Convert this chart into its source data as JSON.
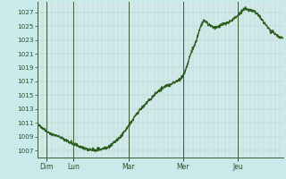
{
  "background_color": "#c8eaea",
  "plot_bg_color": "#d4eded",
  "grid_color": "#b8d0d0",
  "line_color": "#2d6020",
  "line_width": 0.9,
  "yticks": [
    1007,
    1009,
    1011,
    1013,
    1015,
    1017,
    1019,
    1021,
    1023,
    1025,
    1027
  ],
  "ylim": [
    1006.0,
    1028.5
  ],
  "day_labels": [
    "Dim",
    "Lun",
    "Mar",
    "Mer",
    "Jeu"
  ],
  "day_positions": [
    8,
    32,
    80,
    128,
    176
  ],
  "total_hours": 216,
  "xlim": [
    0,
    216
  ],
  "control_pts": [
    [
      0,
      1011.0
    ],
    [
      4,
      1010.3
    ],
    [
      8,
      1009.8
    ],
    [
      14,
      1009.3
    ],
    [
      20,
      1009.0
    ],
    [
      26,
      1008.4
    ],
    [
      32,
      1008.0
    ],
    [
      38,
      1007.5
    ],
    [
      44,
      1007.2
    ],
    [
      50,
      1007.1
    ],
    [
      56,
      1007.2
    ],
    [
      62,
      1007.5
    ],
    [
      68,
      1008.2
    ],
    [
      74,
      1009.2
    ],
    [
      80,
      1010.5
    ],
    [
      86,
      1012.0
    ],
    [
      92,
      1013.2
    ],
    [
      98,
      1014.2
    ],
    [
      104,
      1015.2
    ],
    [
      108,
      1015.8
    ],
    [
      112,
      1016.2
    ],
    [
      116,
      1016.5
    ],
    [
      120,
      1016.8
    ],
    [
      124,
      1017.2
    ],
    [
      128,
      1017.8
    ],
    [
      132,
      1019.5
    ],
    [
      136,
      1021.5
    ],
    [
      140,
      1023.0
    ],
    [
      144,
      1025.2
    ],
    [
      148,
      1025.6
    ],
    [
      152,
      1025.1
    ],
    [
      156,
      1024.8
    ],
    [
      160,
      1025.0
    ],
    [
      164,
      1025.3
    ],
    [
      168,
      1025.5
    ],
    [
      172,
      1026.0
    ],
    [
      176,
      1026.5
    ],
    [
      180,
      1027.2
    ],
    [
      184,
      1027.4
    ],
    [
      188,
      1027.3
    ],
    [
      192,
      1027.0
    ],
    [
      196,
      1026.2
    ],
    [
      200,
      1025.3
    ],
    [
      204,
      1024.5
    ],
    [
      208,
      1024.0
    ],
    [
      212,
      1023.5
    ],
    [
      216,
      1023.2
    ]
  ]
}
